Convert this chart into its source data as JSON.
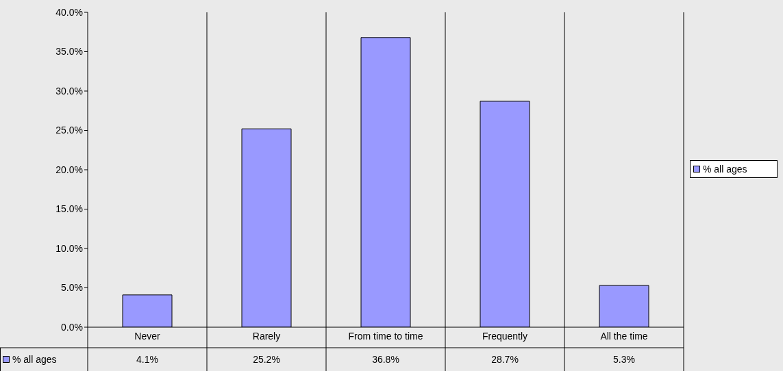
{
  "chart_data": {
    "type": "bar",
    "categories": [
      "Never",
      "Rarely",
      "From time to time",
      "Frequently",
      "All the time"
    ],
    "series": [
      {
        "name": "% all ages",
        "color": "#9999ff",
        "values": [
          4.1,
          25.2,
          36.8,
          28.7,
          5.3
        ],
        "value_labels": [
          "4.1%",
          "25.2%",
          "36.8%",
          "28.7%",
          "5.3%"
        ]
      }
    ],
    "ylim": [
      0,
      40
    ],
    "yticks": [
      {
        "value": 0,
        "label": "0.0%"
      },
      {
        "value": 5,
        "label": "5.0%"
      },
      {
        "value": 10,
        "label": "10.0%"
      },
      {
        "value": 15,
        "label": "15.0%"
      },
      {
        "value": 20,
        "label": "20.0%"
      },
      {
        "value": 25,
        "label": "25.0%"
      },
      {
        "value": 30,
        "label": "30.0%"
      },
      {
        "value": 35,
        "label": "35.0%"
      },
      {
        "value": 40,
        "label": "40.0%"
      }
    ],
    "grid": "x",
    "legend": "right"
  }
}
